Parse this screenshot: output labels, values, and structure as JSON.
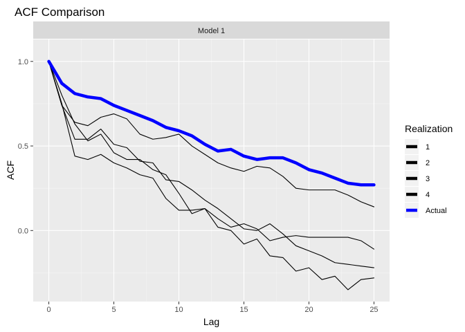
{
  "chart_data": {
    "type": "line",
    "title": "ACF Comparison",
    "facet_label": "Model 1",
    "xlabel": "Lag",
    "ylabel": "ACF",
    "xlim": [
      -1.2,
      26.2
    ],
    "ylim": [
      -0.42,
      1.13
    ],
    "x_ticks": [
      0,
      5,
      10,
      15,
      20,
      25
    ],
    "y_ticks": [
      0.0,
      0.5,
      1.0
    ],
    "y_tick_labels": [
      "0.0",
      "0.5",
      "1.0"
    ],
    "grid": true,
    "legend": {
      "title": "Realization",
      "placement": "right"
    },
    "x": [
      0,
      1,
      2,
      3,
      4,
      5,
      6,
      7,
      8,
      9,
      10,
      11,
      12,
      13,
      14,
      15,
      16,
      17,
      18,
      19,
      20,
      21,
      22,
      23,
      24,
      25
    ],
    "series": [
      {
        "name": "1",
        "color": "#000000",
        "values": [
          1.0,
          0.74,
          0.64,
          0.62,
          0.67,
          0.69,
          0.66,
          0.57,
          0.54,
          0.55,
          0.57,
          0.5,
          0.45,
          0.4,
          0.37,
          0.35,
          0.38,
          0.37,
          0.32,
          0.25,
          0.24,
          0.24,
          0.24,
          0.21,
          0.17,
          0.14
        ]
      },
      {
        "name": "2",
        "color": "#000000",
        "values": [
          1.0,
          0.74,
          0.54,
          0.54,
          0.6,
          0.51,
          0.49,
          0.41,
          0.4,
          0.3,
          0.29,
          0.24,
          0.18,
          0.13,
          0.07,
          0.01,
          0.0,
          0.04,
          -0.02,
          -0.09,
          -0.12,
          -0.15,
          -0.19,
          -0.2,
          -0.21,
          -0.22
        ]
      },
      {
        "name": "3",
        "color": "#000000",
        "values": [
          1.0,
          0.8,
          0.63,
          0.53,
          0.57,
          0.46,
          0.42,
          0.42,
          0.36,
          0.33,
          0.22,
          0.1,
          0.13,
          0.07,
          0.02,
          0.04,
          0.01,
          -0.06,
          -0.04,
          -0.03,
          -0.04,
          -0.04,
          -0.04,
          -0.04,
          -0.06,
          -0.11
        ]
      },
      {
        "name": "4",
        "color": "#000000",
        "values": [
          1.0,
          0.75,
          0.44,
          0.42,
          0.45,
          0.4,
          0.37,
          0.33,
          0.31,
          0.19,
          0.12,
          0.12,
          0.13,
          0.02,
          0.0,
          -0.08,
          -0.05,
          -0.15,
          -0.16,
          -0.24,
          -0.22,
          -0.29,
          -0.27,
          -0.35,
          -0.29,
          -0.28
        ]
      },
      {
        "name": "Actual",
        "color": "#0000ff",
        "values": [
          1.0,
          0.87,
          0.81,
          0.79,
          0.78,
          0.74,
          0.71,
          0.68,
          0.65,
          0.61,
          0.59,
          0.56,
          0.51,
          0.47,
          0.48,
          0.44,
          0.42,
          0.43,
          0.43,
          0.4,
          0.36,
          0.34,
          0.31,
          0.28,
          0.27,
          0.27
        ]
      }
    ]
  }
}
